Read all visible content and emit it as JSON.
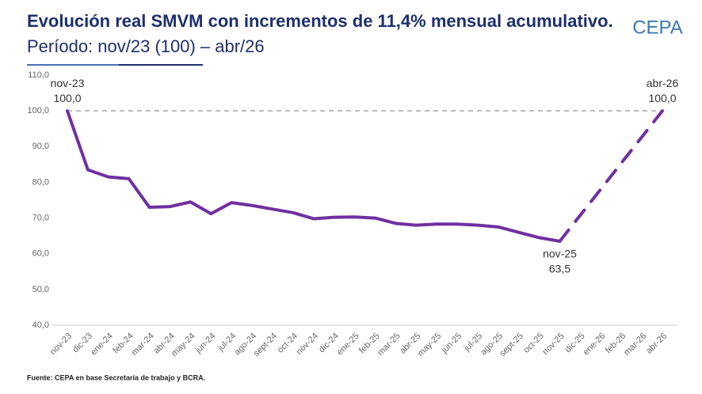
{
  "chart_data": {
    "type": "line",
    "title_bold": "Evolución real SMVM con incrementos de 11,4% mensual acumulativo.",
    "title_rest": "Período: nov/23 (100) – abr/26",
    "logo": "CEPA",
    "source": "Fuente: CEPA en base Secretaría de trabajo y BCRA.",
    "categories": [
      "nov-23",
      "dic-23",
      "ene-24",
      "feb-24",
      "mar-24",
      "abr-24",
      "may-24",
      "jun-24",
      "jul-24",
      "ago-24",
      "sept-24",
      "oct-24",
      "nov-24",
      "dic-24",
      "ene-25",
      "feb-25",
      "mar-25",
      "abr-25",
      "may-25",
      "jun-25",
      "jul-25",
      "ago-25",
      "sept-25",
      "oct-25",
      "nov-25",
      "dic-25",
      "ene-26",
      "feb-26",
      "mar-26",
      "abr-26"
    ],
    "series": [
      {
        "color": "#7030a0",
        "dashed": false,
        "values": [
          100,
          83.5,
          81.5,
          81,
          73,
          73.2,
          74.5,
          71.2,
          74.3,
          73.5,
          72.5,
          71.5,
          69.8,
          70.2,
          70.3,
          70,
          68.5,
          68,
          68.3,
          68.3,
          68,
          67.5,
          66,
          64.5,
          63.5,
          null,
          null,
          null,
          null,
          null
        ],
        "value_labels": [
          "100,0",
          null,
          null,
          null,
          null,
          null,
          null,
          null,
          null,
          null,
          null,
          null,
          null,
          null,
          null,
          null,
          null,
          null,
          null,
          null,
          null,
          null,
          null,
          null,
          "63,5",
          null,
          null,
          null,
          null,
          null
        ]
      },
      {
        "color": "#7030a0",
        "dashed": true,
        "values": [
          null,
          null,
          null,
          null,
          null,
          null,
          null,
          null,
          null,
          null,
          null,
          null,
          null,
          null,
          null,
          null,
          null,
          null,
          null,
          null,
          null,
          null,
          null,
          null,
          63.5,
          70.8,
          78.1,
          85.4,
          92.7,
          100
        ],
        "value_labels": [
          null,
          null,
          null,
          null,
          null,
          null,
          null,
          null,
          null,
          null,
          null,
          null,
          null,
          null,
          null,
          null,
          null,
          null,
          null,
          null,
          null,
          null,
          null,
          null,
          null,
          null,
          null,
          null,
          null,
          "100,0"
        ]
      }
    ],
    "reference_line": 100,
    "ylim": [
      40,
      110
    ],
    "yticks": [
      {
        "value": 40,
        "label": "40,0"
      },
      {
        "value": 50,
        "label": "50,0"
      },
      {
        "value": 60,
        "label": "60,0"
      },
      {
        "value": 70,
        "label": "70,0"
      },
      {
        "value": 80,
        "label": "80,0"
      },
      {
        "value": 90,
        "label": "90,0"
      },
      {
        "value": 100,
        "label": "100,0"
      },
      {
        "value": 110,
        "label": "110,0"
      }
    ]
  }
}
